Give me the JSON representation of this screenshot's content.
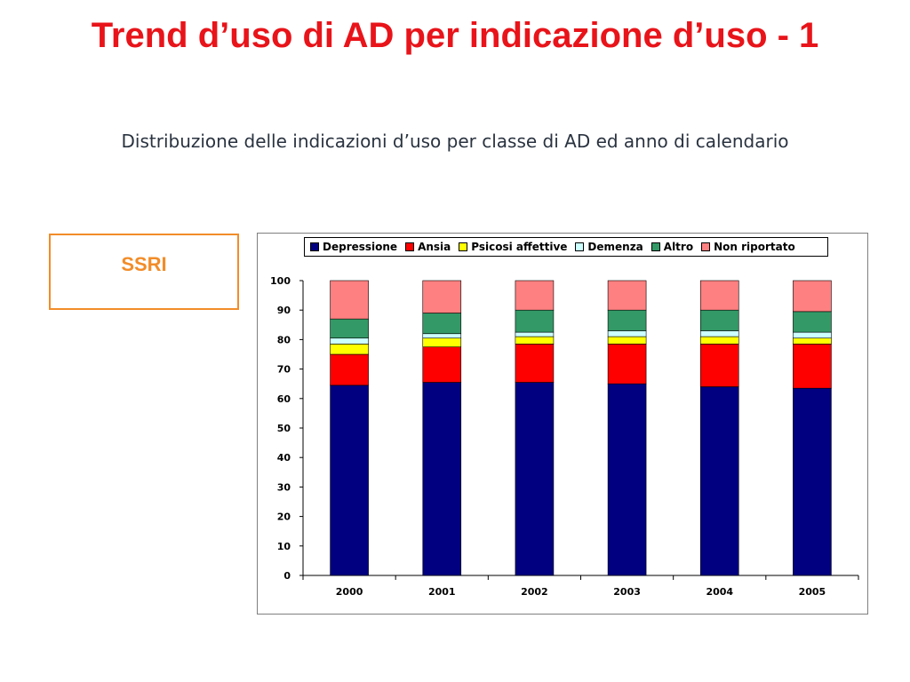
{
  "slide": {
    "title": "Trend d’uso di AD per indicazione d’uso - 1",
    "subtitle": "Distribuzione delle indicazioni d’uso per classe di AD ed anno di calendario",
    "class_label": "SSRI"
  },
  "colors": {
    "title": "#e8141a",
    "class_border": "#f28c28"
  },
  "chart_data": {
    "type": "bar",
    "stacked": true,
    "categories": [
      "2000",
      "2001",
      "2002",
      "2003",
      "2004",
      "2005"
    ],
    "ylim": [
      0,
      100
    ],
    "yticks": [
      0,
      10,
      20,
      30,
      40,
      50,
      60,
      70,
      80,
      90,
      100
    ],
    "legend_position": "top",
    "grid": false,
    "series": [
      {
        "name": "Depressione",
        "color": "#000080",
        "values": [
          64.5,
          65.5,
          65.5,
          65.0,
          64.0,
          63.5
        ]
      },
      {
        "name": "Ansia",
        "color": "#ff0000",
        "values": [
          10.5,
          12.0,
          13.0,
          13.5,
          14.5,
          15.0
        ]
      },
      {
        "name": "Psicosi affettive",
        "color": "#ffff00",
        "values": [
          3.5,
          3.0,
          2.5,
          2.5,
          2.5,
          2.0
        ]
      },
      {
        "name": "Demenza",
        "color": "#ccffff",
        "values": [
          2.0,
          1.5,
          1.5,
          2.0,
          2.0,
          2.0
        ]
      },
      {
        "name": "Altro",
        "color": "#339966",
        "values": [
          6.5,
          7.0,
          7.5,
          7.0,
          7.0,
          7.0
        ]
      },
      {
        "name": "Non riportato",
        "color": "#ff8080",
        "values": [
          13.0,
          11.0,
          10.0,
          10.0,
          10.0,
          10.5
        ]
      }
    ]
  }
}
